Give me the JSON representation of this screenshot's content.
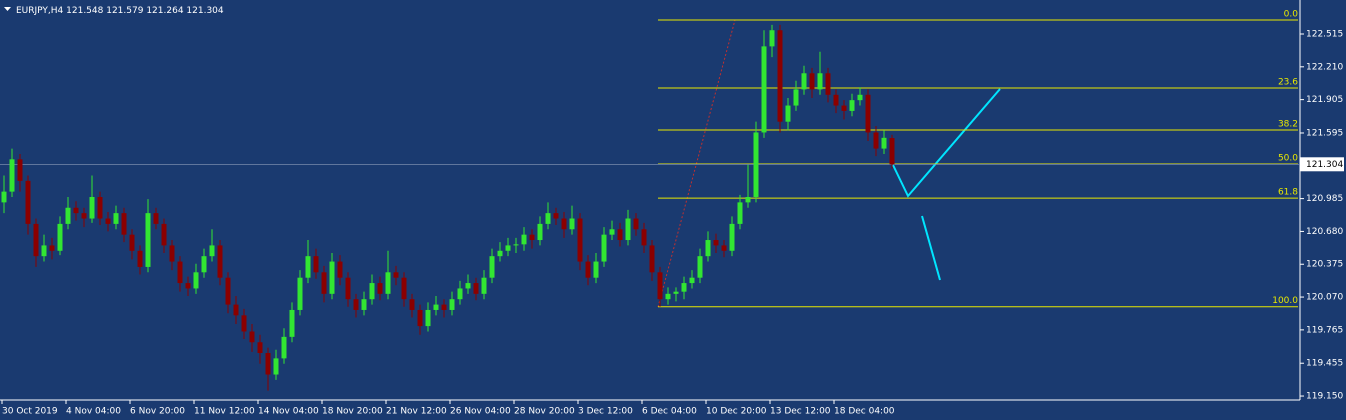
{
  "chart_data": {
    "type": "candlestick",
    "symbol": "EURJPY,H4",
    "up_color": "#32e632",
    "down_color": "#8b0000",
    "background": "#1a3a70",
    "ylim": [
      119.076,
      122.831
    ],
    "yticks": [
      122.515,
      {
        "value": 122.21,
        "label": "122.210"
      },
      121.905,
      121.595,
      120.985,
      {
        "value": 120.68,
        "label": "120.680"
      },
      120.375,
      {
        "value": 120.07,
        "label": "120.070"
      },
      119.765,
      119.455,
      {
        "value": 119.15,
        "label": "119.150"
      }
    ],
    "fibonacci": {
      "color": "#e8e800",
      "levels": [
        {
          "label": "0.0",
          "price": 122.645
        },
        {
          "label": "23.6",
          "price": 122.013
        },
        {
          "label": "38.2",
          "price": 121.623
        },
        {
          "label": "50.0",
          "price": 121.307
        },
        {
          "label": "61.8",
          "price": 120.99
        },
        {
          "label": "100.0",
          "price": 119.98
        }
      ]
    },
    "categories": [
      "30 Oct 2019",
      null,
      null,
      null,
      null,
      null,
      null,
      null,
      "4 Nov 04:00",
      null,
      null,
      null,
      null,
      null,
      null,
      null,
      "6 Nov 20:00",
      null,
      null,
      null,
      null,
      null,
      null,
      null,
      "11 Nov 12:00",
      null,
      null,
      null,
      null,
      null,
      null,
      null,
      "14 Nov 04:00",
      null,
      null,
      null,
      null,
      null,
      null,
      null,
      "18 Nov 20:00",
      null,
      null,
      null,
      null,
      null,
      null,
      null,
      "21 Nov 12:00",
      null,
      null,
      null,
      null,
      null,
      null,
      null,
      "26 Nov 04:00",
      null,
      null,
      null,
      null,
      null,
      null,
      null,
      "28 Nov 20:00",
      null,
      null,
      null,
      null,
      null,
      null,
      null,
      "3 Dec 12:00",
      null,
      null,
      null,
      null,
      null,
      null,
      null,
      "6 Dec 04:00",
      null,
      null,
      null,
      null,
      null,
      null,
      null,
      "10 Dec 20:00",
      null,
      null,
      null,
      null,
      null,
      null,
      null,
      "13 Dec 12:00",
      null,
      null,
      null,
      null,
      null,
      null,
      null,
      "18 Dec 04:00",
      null,
      null,
      null,
      null,
      null,
      null,
      null
    ],
    "ohlc": [
      [
        120.95,
        121.2,
        120.85,
        121.05
      ],
      [
        121.05,
        121.45,
        121.0,
        121.35
      ],
      [
        121.35,
        121.4,
        121.05,
        121.15
      ],
      [
        121.15,
        121.2,
        120.65,
        120.75
      ],
      [
        120.75,
        120.8,
        120.35,
        120.45
      ],
      [
        120.45,
        120.65,
        120.4,
        120.55
      ],
      [
        120.55,
        120.62,
        120.42,
        120.5
      ],
      [
        120.5,
        120.82,
        120.46,
        120.75
      ],
      [
        120.75,
        121.0,
        120.7,
        120.9
      ],
      [
        120.9,
        120.96,
        120.78,
        120.85
      ],
      [
        120.85,
        120.9,
        120.72,
        120.8
      ],
      [
        120.8,
        121.2,
        120.76,
        121.0
      ],
      [
        121.0,
        121.05,
        120.74,
        120.8
      ],
      [
        120.8,
        120.86,
        120.68,
        120.75
      ],
      [
        120.75,
        120.92,
        120.7,
        120.85
      ],
      [
        120.85,
        120.9,
        120.58,
        120.65
      ],
      [
        120.65,
        120.7,
        120.42,
        120.5
      ],
      [
        120.5,
        120.55,
        120.28,
        120.35
      ],
      [
        120.35,
        120.98,
        120.3,
        120.85
      ],
      [
        120.85,
        120.9,
        120.7,
        120.75
      ],
      [
        120.75,
        120.8,
        120.48,
        120.55
      ],
      [
        120.55,
        120.6,
        120.32,
        120.4
      ],
      [
        120.4,
        120.45,
        120.12,
        120.2
      ],
      [
        120.2,
        120.26,
        120.08,
        120.15
      ],
      [
        120.15,
        120.38,
        120.1,
        120.3
      ],
      [
        120.3,
        120.52,
        120.25,
        120.45
      ],
      [
        120.45,
        120.7,
        120.4,
        120.55
      ],
      [
        120.55,
        120.6,
        120.18,
        120.25
      ],
      [
        120.25,
        120.3,
        119.92,
        120.0
      ],
      [
        120.0,
        120.08,
        119.82,
        119.9
      ],
      [
        119.9,
        119.96,
        119.68,
        119.75
      ],
      [
        119.75,
        119.82,
        119.56,
        119.65
      ],
      [
        119.65,
        119.72,
        119.45,
        119.55
      ],
      [
        119.55,
        119.6,
        119.2,
        119.35
      ],
      [
        119.35,
        119.58,
        119.3,
        119.5
      ],
      [
        119.5,
        119.78,
        119.45,
        119.7
      ],
      [
        119.7,
        120.02,
        119.65,
        119.95
      ],
      [
        119.95,
        120.32,
        119.9,
        120.25
      ],
      [
        120.25,
        120.6,
        120.2,
        120.45
      ],
      [
        120.45,
        120.52,
        120.24,
        120.3
      ],
      [
        120.3,
        120.36,
        120.02,
        120.1
      ],
      [
        120.1,
        120.48,
        120.05,
        120.4
      ],
      [
        120.4,
        120.46,
        120.18,
        120.25
      ],
      [
        120.25,
        120.3,
        119.98,
        120.05
      ],
      [
        120.05,
        120.1,
        119.88,
        119.95
      ],
      [
        119.95,
        120.12,
        119.9,
        120.05
      ],
      [
        120.05,
        120.28,
        120.0,
        120.2
      ],
      [
        120.2,
        120.26,
        120.04,
        120.1
      ],
      [
        120.1,
        120.5,
        120.05,
        120.3
      ],
      [
        120.3,
        120.36,
        120.18,
        120.25
      ],
      [
        120.25,
        120.3,
        119.98,
        120.05
      ],
      [
        120.05,
        120.1,
        119.88,
        119.95
      ],
      [
        119.95,
        120.0,
        119.72,
        119.8
      ],
      [
        119.8,
        120.02,
        119.75,
        119.95
      ],
      [
        119.95,
        120.08,
        119.9,
        120.0
      ],
      [
        120.0,
        120.05,
        119.88,
        119.95
      ],
      [
        119.95,
        120.12,
        119.9,
        120.05
      ],
      [
        120.05,
        120.22,
        120.0,
        120.15
      ],
      [
        120.15,
        120.28,
        120.1,
        120.2
      ],
      [
        120.2,
        120.25,
        120.04,
        120.1
      ],
      [
        120.1,
        120.32,
        120.05,
        120.25
      ],
      [
        120.25,
        120.52,
        120.2,
        120.45
      ],
      [
        120.45,
        120.58,
        120.4,
        120.5
      ],
      [
        120.5,
        120.62,
        120.45,
        120.55
      ],
      [
        120.55,
        120.62,
        120.48,
        120.56
      ],
      [
        120.56,
        120.72,
        120.5,
        120.65
      ],
      [
        120.65,
        120.7,
        120.52,
        120.6
      ],
      [
        120.6,
        120.82,
        120.55,
        120.75
      ],
      [
        120.75,
        120.95,
        120.7,
        120.85
      ],
      [
        120.85,
        120.9,
        120.74,
        120.8
      ],
      [
        120.8,
        120.86,
        120.62,
        120.7
      ],
      [
        120.7,
        120.92,
        120.65,
        120.8
      ],
      [
        120.8,
        120.85,
        120.32,
        120.4
      ],
      [
        120.4,
        120.46,
        120.18,
        120.25
      ],
      [
        120.25,
        120.48,
        120.2,
        120.4
      ],
      [
        120.4,
        120.72,
        120.35,
        120.65
      ],
      [
        120.65,
        120.78,
        120.6,
        120.7
      ],
      [
        120.7,
        120.76,
        120.54,
        120.6
      ],
      [
        120.6,
        120.88,
        120.55,
        120.8
      ],
      [
        120.8,
        120.85,
        120.64,
        120.7
      ],
      [
        120.7,
        120.76,
        120.48,
        120.55
      ],
      [
        120.55,
        120.6,
        120.22,
        120.3
      ],
      [
        120.3,
        120.35,
        119.98,
        120.05
      ],
      [
        120.05,
        120.16,
        120.0,
        120.1
      ],
      [
        120.1,
        120.16,
        120.03,
        120.12
      ],
      [
        120.12,
        120.26,
        120.05,
        120.2
      ],
      [
        120.2,
        120.32,
        120.15,
        120.25
      ],
      [
        120.25,
        120.52,
        120.2,
        120.45
      ],
      [
        120.45,
        120.68,
        120.4,
        120.6
      ],
      [
        120.6,
        120.66,
        120.48,
        120.55
      ],
      [
        120.55,
        120.6,
        120.44,
        120.5
      ],
      [
        120.5,
        120.82,
        120.45,
        120.75
      ],
      [
        120.75,
        121.02,
        120.7,
        120.95
      ],
      [
        120.95,
        121.3,
        120.9,
        121.0
      ],
      [
        121.0,
        121.7,
        120.95,
        121.6
      ],
      [
        121.6,
        122.55,
        121.55,
        122.4
      ],
      [
        122.4,
        122.6,
        122.3,
        122.55
      ],
      [
        122.55,
        122.6,
        121.6,
        121.7
      ],
      [
        121.7,
        121.92,
        121.62,
        121.85
      ],
      [
        121.85,
        122.08,
        121.8,
        122.0
      ],
      [
        122.0,
        122.22,
        121.95,
        122.15
      ],
      [
        122.15,
        122.2,
        121.92,
        122.0
      ],
      [
        122.0,
        122.35,
        121.95,
        122.15
      ],
      [
        122.15,
        122.2,
        121.88,
        121.95
      ],
      [
        121.95,
        122.0,
        121.78,
        121.85
      ],
      [
        121.85,
        121.9,
        121.72,
        121.8
      ],
      [
        121.8,
        121.96,
        121.75,
        121.9
      ],
      [
        121.9,
        122.02,
        121.85,
        121.95
      ],
      [
        121.95,
        122.0,
        121.52,
        121.6
      ],
      [
        121.6,
        121.66,
        121.38,
        121.45
      ],
      [
        121.45,
        121.62,
        121.4,
        121.55
      ],
      [
        121.548,
        121.579,
        121.264,
        121.304
      ]
    ]
  }
}
